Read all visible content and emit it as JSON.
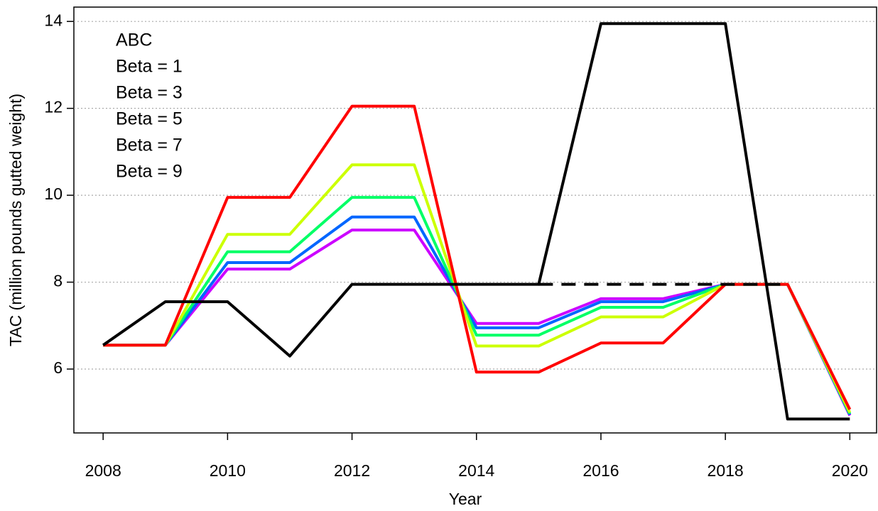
{
  "chart_data": {
    "type": "line",
    "xlabel": "Year",
    "ylabel": "TAC (million pounds gutted weight)",
    "x": [
      2008,
      2009,
      2010,
      2011,
      2012,
      2013,
      2014,
      2015,
      2016,
      2017,
      2018,
      2019,
      2020
    ],
    "xlim": [
      2007.53,
      2020.43
    ],
    "xticks": [
      2008,
      2010,
      2012,
      2014,
      2016,
      2018,
      2020
    ],
    "ylim": [
      4.53,
      14.33
    ],
    "yticks": [
      6,
      8,
      10,
      12,
      14
    ],
    "grid": true,
    "legend": "topleft",
    "series": [
      {
        "name": "ABC",
        "color": "#000000",
        "values": [
          6.55,
          7.55,
          7.55,
          6.3,
          7.95,
          7.95,
          7.95,
          7.95,
          13.95,
          13.95,
          13.95,
          4.85,
          4.85
        ]
      },
      {
        "color": "#000000",
        "dash": true,
        "values": [
          null,
          null,
          null,
          null,
          null,
          null,
          null,
          7.95,
          7.95,
          7.95,
          7.95,
          7.95,
          null
        ]
      },
      {
        "name": "Beta = 1",
        "color": "#ff0000",
        "values": [
          6.55,
          6.55,
          9.95,
          9.95,
          12.05,
          12.05,
          5.93,
          5.93,
          6.6,
          6.6,
          7.95,
          7.95,
          5.07
        ]
      },
      {
        "name": "Beta = 3",
        "color": "#ccff00",
        "values": [
          6.55,
          6.55,
          9.1,
          9.1,
          10.7,
          10.7,
          6.53,
          6.53,
          7.2,
          7.2,
          7.95,
          7.95,
          5.0
        ]
      },
      {
        "name": "Beta = 5",
        "color": "#00ff66",
        "values": [
          6.55,
          6.55,
          8.7,
          8.7,
          9.95,
          9.95,
          6.78,
          6.78,
          7.42,
          7.42,
          7.95,
          7.95,
          4.97
        ]
      },
      {
        "name": "Beta = 7",
        "color": "#0066ff",
        "values": [
          6.55,
          6.55,
          8.45,
          8.45,
          9.5,
          9.5,
          6.95,
          6.95,
          7.55,
          7.55,
          7.95,
          7.95,
          4.95
        ]
      },
      {
        "name": "Beta = 9",
        "color": "#cc00ff",
        "values": [
          6.55,
          6.55,
          8.3,
          8.3,
          9.2,
          9.2,
          7.05,
          7.05,
          7.62,
          7.62,
          7.95,
          7.95,
          4.93
        ]
      }
    ]
  }
}
